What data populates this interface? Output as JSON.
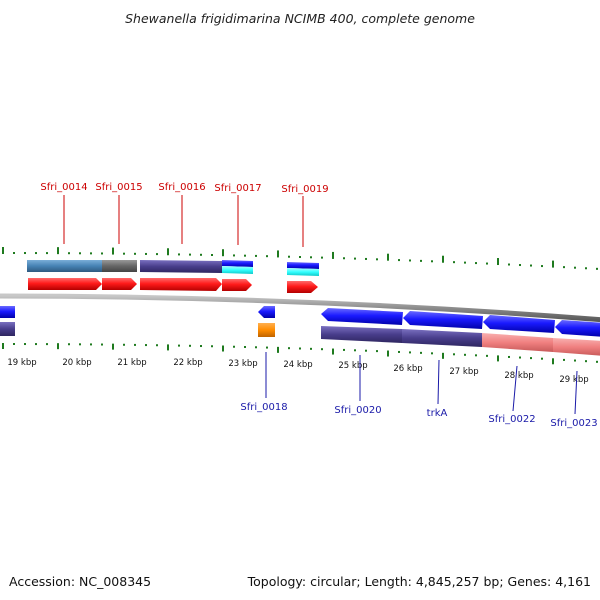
{
  "header": {
    "title": "Shewanella frigidimarina NCIMB 400, complete genome"
  },
  "footer": {
    "accession": "Accession: NC_008345",
    "summary": "Topology: circular; Length: 4,845,257 bp; Genes: 4,161"
  },
  "ruler": {
    "labels": [
      "19 kbp",
      "20 kbp",
      "21 kbp",
      "22 kbp",
      "23 kbp",
      "24 kbp",
      "25 kbp",
      "26 kbp",
      "27 kbp",
      "28 kbp",
      "29 kbp"
    ]
  },
  "genes": {
    "forward_labels": [
      "Sfri_0014",
      "Sfri_0015",
      "Sfri_0016",
      "Sfri_0017",
      "Sfri_0019"
    ],
    "reverse_labels": [
      "Sfri_0018",
      "Sfri_0020",
      "trkA",
      "Sfri_0022",
      "Sfri_0023"
    ]
  },
  "colors": {
    "forward_cds": "#ff1a1a",
    "reverse_cds": "#1a1aff",
    "backbone": "#8c8c8c",
    "tick": "#1e7a1e",
    "forward_label": "#cc0000",
    "reverse_label": "#1a1aa8",
    "cog_steel": "#4682b4",
    "cog_grey": "#666666",
    "cog_slate": "#483d8b",
    "cog_cyan": "#33ffff",
    "cog_orange": "#ff8c00",
    "cog_salmon": "#f08080"
  }
}
